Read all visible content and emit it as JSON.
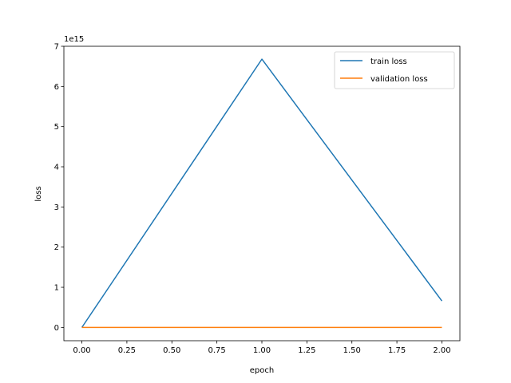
{
  "chart_data": {
    "type": "line",
    "title": "",
    "xlabel": "epoch",
    "ylabel": "loss",
    "y_offset_label": "1e15",
    "y_scale": 1000000000000000.0,
    "x": [
      0,
      1,
      2
    ],
    "xlim": [
      -0.1,
      2.1
    ],
    "ylim": [
      -330000000000000.0,
      7000000000000000.0
    ],
    "x_ticks": [
      0.0,
      0.25,
      0.5,
      0.75,
      1.0,
      1.25,
      1.5,
      1.75,
      2.0
    ],
    "x_tick_labels": [
      "0.00",
      "0.25",
      "0.50",
      "0.75",
      "1.00",
      "1.25",
      "1.50",
      "1.75",
      "2.00"
    ],
    "y_ticks": [
      0,
      1000000000000000.0,
      2000000000000000.0,
      3000000000000000.0,
      4000000000000000.0,
      5000000000000000.0,
      6000000000000000.0,
      7000000000000000.0
    ],
    "y_tick_labels": [
      "0",
      "1",
      "2",
      "3",
      "4",
      "5",
      "6",
      "7"
    ],
    "grid": false,
    "legend_position": "top-right",
    "series": [
      {
        "name": "train loss",
        "color": "#1f77b4",
        "values": [
          0,
          6680000000000000.0,
          660000000000000.0
        ]
      },
      {
        "name": "validation loss",
        "color": "#ff7f0e",
        "values": [
          0,
          0,
          0
        ]
      }
    ]
  }
}
